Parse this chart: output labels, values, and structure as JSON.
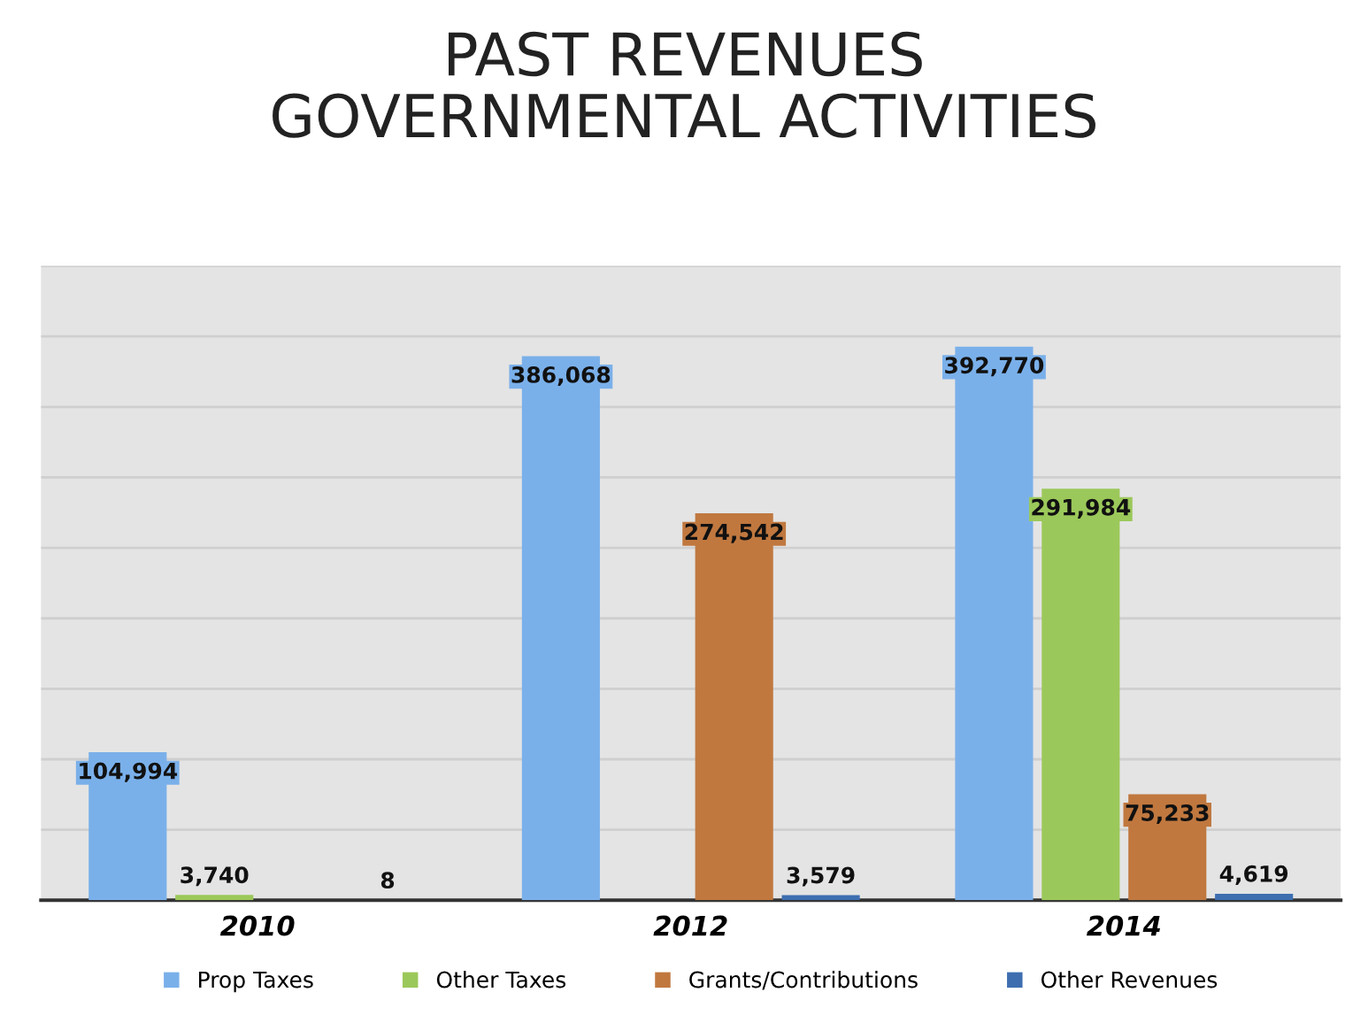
{
  "chart_data": {
    "type": "bar",
    "title": "PAST REVENUES\nGOVERNMENTAL ACTIVITIES",
    "categories": [
      "2010",
      "2012",
      "2014"
    ],
    "series": [
      {
        "name": "Prop Taxes",
        "color": "#7ab0ea",
        "values": [
          104994,
          386068,
          392770
        ],
        "value_labels": [
          "104,994",
          "386,068",
          "392,770"
        ]
      },
      {
        "name": "Other Taxes",
        "color": "#9bc85a",
        "values": [
          3740,
          null,
          291984
        ],
        "value_labels": [
          "3,740",
          null,
          "291,984"
        ]
      },
      {
        "name": "Grants/Contributions",
        "color": "#c0783f",
        "values": [
          null,
          274542,
          75233
        ],
        "value_labels": [
          null,
          "274,542",
          "75,233"
        ]
      },
      {
        "name": "Other Revenues",
        "color": "#3e6eb0",
        "values": [
          8,
          3579,
          4619
        ],
        "value_labels": [
          "8",
          "3,579",
          "4,619"
        ]
      }
    ],
    "ylim": [
      0,
      450000
    ],
    "yticks": [
      {
        "value": 0,
        "label": null
      },
      {
        "value": 50000,
        "label": null
      },
      {
        "value": 100000,
        "label": null
      },
      {
        "value": 150000,
        "label": null
      },
      {
        "value": 200000,
        "label": null
      },
      {
        "value": 250000,
        "label": null
      },
      {
        "value": 300000,
        "label": null
      },
      {
        "value": 350000,
        "label": null
      },
      {
        "value": 400000,
        "label": null
      },
      {
        "value": 450000,
        "label": null
      }
    ],
    "tick_labels": "x",
    "grid": "y",
    "legend": "bottom"
  }
}
